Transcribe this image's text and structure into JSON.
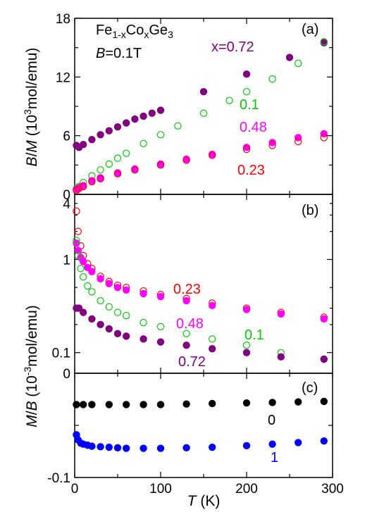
{
  "colors": {
    "purple": "#800080",
    "green": "#00cc00",
    "magenta": "#ff00ff",
    "red": "#ff0000",
    "black": "#000000",
    "blue": "#0000ff"
  },
  "text": {
    "formula": {
      "a": "Fe",
      "b": "1-x",
      "c": "Co",
      "d": "x",
      "e": "Ge",
      "f": "3"
    },
    "field": {
      "var": "B",
      "val": "=0.1T"
    },
    "ylabel_top": {
      "b": "B",
      "sl": "/",
      "m": "M",
      "open": " (10",
      "exp": "3",
      "unit": "mol/emu)"
    },
    "ylabel_bot": {
      "m": "M",
      "sl": "/",
      "b": "B",
      "open": " (10",
      "exp": "-3",
      "unit": "mol/emu)"
    },
    "xlabel": {
      "t": "T",
      "unit": " (K)"
    }
  },
  "chart_data": [
    {
      "type": "scatter",
      "panel": "(a)",
      "xlim": [
        0,
        300
      ],
      "ylim": [
        0,
        18
      ],
      "xticks": [
        "0",
        "100",
        "200",
        "300"
      ],
      "yticks": [
        "0",
        "6",
        "12",
        "18"
      ],
      "annotations": [
        "x=0.72",
        "0.1",
        "0.48",
        "0.23"
      ],
      "series": [
        {
          "name": "x=0.72",
          "color": "#800080",
          "filled": true,
          "x": [
            2,
            5,
            10,
            20,
            30,
            40,
            50,
            60,
            70,
            80,
            90,
            100,
            150,
            200,
            250,
            290
          ],
          "y": [
            5.0,
            4.8,
            5.1,
            5.6,
            6.1,
            6.5,
            6.9,
            7.3,
            7.7,
            8.0,
            8.3,
            8.6,
            10.5,
            12.3,
            14.0,
            15.5
          ]
        },
        {
          "name": "0.1",
          "color": "#00cc00",
          "filled": false,
          "x": [
            2,
            5,
            10,
            20,
            30,
            40,
            50,
            60,
            80,
            100,
            120,
            150,
            180,
            200,
            230,
            260,
            290
          ],
          "y": [
            0.6,
            0.8,
            1.2,
            1.9,
            2.5,
            3.1,
            3.7,
            4.2,
            5.2,
            6.1,
            7.0,
            8.3,
            9.6,
            10.5,
            11.8,
            13.4,
            15.6
          ]
        },
        {
          "name": "0.48",
          "color": "#ff00ff",
          "filled": true,
          "x": [
            2,
            5,
            10,
            20,
            30,
            50,
            70,
            100,
            130,
            160,
            200,
            230,
            260,
            290
          ],
          "y": [
            0.5,
            0.7,
            0.9,
            1.4,
            1.7,
            2.2,
            2.6,
            3.1,
            3.6,
            4.1,
            4.8,
            5.3,
            5.8,
            6.2
          ]
        },
        {
          "name": "0.23",
          "color": "#ff0000",
          "filled": false,
          "x": [
            2,
            5,
            10,
            20,
            30,
            50,
            70,
            100,
            130,
            160,
            200,
            230,
            260,
            290
          ],
          "y": [
            0.4,
            0.6,
            0.8,
            1.3,
            1.6,
            2.1,
            2.5,
            3.0,
            3.5,
            4.0,
            4.6,
            5.0,
            5.4,
            5.8
          ]
        }
      ]
    },
    {
      "type": "scatter",
      "panel": "(b)",
      "scale": "log",
      "xlim": [
        0,
        300
      ],
      "ylim": [
        0.06,
        5
      ],
      "xticks": [
        "0",
        "100",
        "200",
        "300"
      ],
      "yticks": [
        "0.1",
        "1",
        "4"
      ],
      "annotations": [
        "0.23",
        "0.48",
        "0.1",
        "0.72"
      ],
      "series": [
        {
          "name": "0.23",
          "color": "#ff0000",
          "filled": false,
          "x": [
            2,
            4,
            7,
            10,
            15,
            20,
            30,
            40,
            50,
            60,
            80,
            100,
            130,
            160,
            200,
            240,
            290
          ],
          "y": [
            3.3,
            2.0,
            1.4,
            1.1,
            0.9,
            0.8,
            0.66,
            0.58,
            0.53,
            0.5,
            0.46,
            0.42,
            0.38,
            0.34,
            0.3,
            0.27,
            0.24
          ]
        },
        {
          "name": "0.48",
          "color": "#ff00ff",
          "filled": true,
          "x": [
            2,
            4,
            7,
            10,
            15,
            20,
            30,
            40,
            50,
            60,
            80,
            100,
            130,
            160,
            200,
            240,
            290
          ],
          "y": [
            1.5,
            1.25,
            1.05,
            0.95,
            0.82,
            0.74,
            0.62,
            0.55,
            0.5,
            0.47,
            0.43,
            0.4,
            0.36,
            0.32,
            0.29,
            0.26,
            0.23
          ]
        },
        {
          "name": "0.1",
          "color": "#00cc00",
          "filled": false,
          "x": [
            2,
            4,
            7,
            10,
            15,
            20,
            30,
            40,
            50,
            60,
            80,
            100,
            130,
            160,
            200,
            240,
            290
          ],
          "y": [
            1.6,
            1.1,
            0.8,
            0.65,
            0.52,
            0.45,
            0.36,
            0.31,
            0.27,
            0.25,
            0.21,
            0.19,
            0.16,
            0.14,
            0.12,
            0.1,
            0.085
          ]
        },
        {
          "name": "0.72",
          "color": "#800080",
          "filled": true,
          "x": [
            2,
            5,
            10,
            20,
            30,
            40,
            50,
            60,
            80,
            100,
            130,
            160,
            200,
            240,
            290
          ],
          "y": [
            0.3,
            0.3,
            0.27,
            0.23,
            0.2,
            0.18,
            0.16,
            0.15,
            0.14,
            0.13,
            0.12,
            0.11,
            0.1,
            0.09,
            0.085
          ]
        }
      ]
    },
    {
      "type": "scatter",
      "panel": "(c)",
      "xlim": [
        0,
        300
      ],
      "ylim": [
        -0.1,
        0
      ],
      "xticks": [
        "0",
        "100",
        "200",
        "300"
      ],
      "yticks": [
        "0",
        "-0.1"
      ],
      "xlabel": "T (K)",
      "annotations": [
        "0",
        "1"
      ],
      "series": [
        {
          "name": "0",
          "color": "#000000",
          "filled": true,
          "x": [
            2,
            10,
            20,
            40,
            60,
            80,
            100,
            130,
            160,
            200,
            230,
            260,
            290
          ],
          "y": [
            -0.03,
            -0.03,
            -0.03,
            -0.03,
            -0.03,
            -0.03,
            -0.03,
            -0.0295,
            -0.029,
            -0.0285,
            -0.028,
            -0.0275,
            -0.027
          ]
        },
        {
          "name": "1",
          "color": "#0000ff",
          "filled": true,
          "x": [
            2,
            4,
            7,
            10,
            15,
            20,
            30,
            40,
            50,
            60,
            80,
            100,
            130,
            160,
            200,
            230,
            260,
            290
          ],
          "y": [
            -0.059,
            -0.064,
            -0.067,
            -0.068,
            -0.069,
            -0.07,
            -0.0705,
            -0.071,
            -0.0715,
            -0.072,
            -0.072,
            -0.072,
            -0.0715,
            -0.071,
            -0.0695,
            -0.068,
            -0.0665,
            -0.065
          ]
        }
      ]
    }
  ]
}
